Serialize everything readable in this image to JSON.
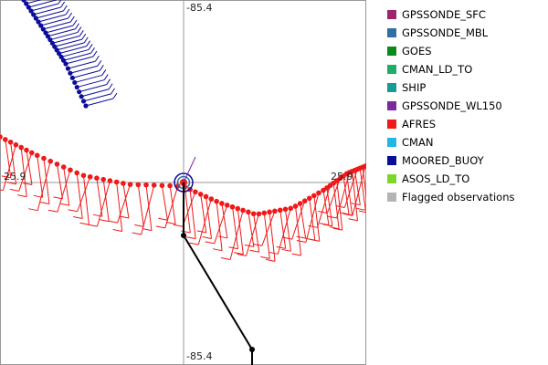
{
  "axes": {
    "top_label": "-85.4",
    "bottom_label": "-85.4",
    "left_label": "25.9",
    "right_label": "25.9"
  },
  "legend": [
    {
      "label": "GPSSONDE_SFC",
      "color": "#a0246a"
    },
    {
      "label": "GPSSONDE_MBL",
      "color": "#2e6fa8"
    },
    {
      "label": "GOES",
      "color": "#0a8a1a"
    },
    {
      "label": "CMAN_LD_TO",
      "color": "#1fae6a"
    },
    {
      "label": "SHIP",
      "color": "#1a9a96"
    },
    {
      "label": "GPSSONDE_WL150",
      "color": "#7a2aa0"
    },
    {
      "label": "AFRES",
      "color": "#f01818"
    },
    {
      "label": "CMAN",
      "color": "#20b6e6"
    },
    {
      "label": "MOORED_BUOY",
      "color": "#0c0c9a"
    },
    {
      "label": "ASOS_LD_TO",
      "color": "#7fd62a"
    },
    {
      "label": "Flagged observations",
      "color": "#b4b4b4"
    }
  ]
}
